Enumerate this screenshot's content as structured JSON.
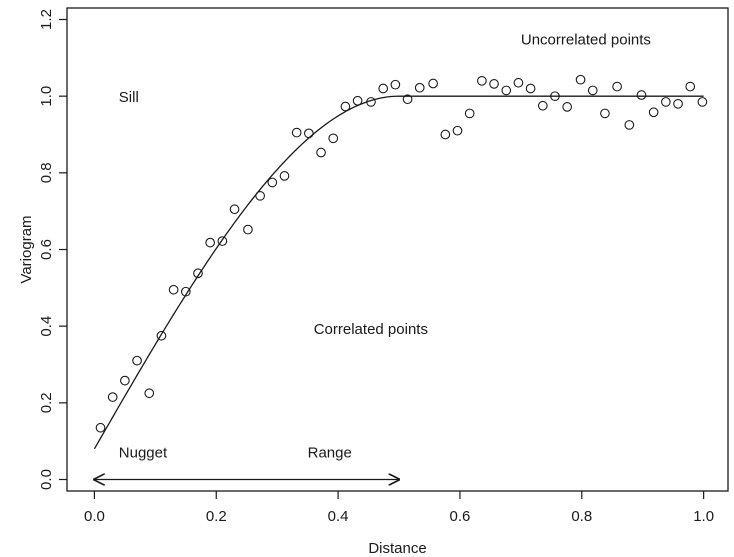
{
  "chart_data": {
    "type": "scatter",
    "title": "",
    "xlabel": "Distance",
    "ylabel": "Variogram",
    "xlim": [
      -0.045,
      1.04
    ],
    "ylim": [
      -0.03,
      1.23
    ],
    "xticks": [
      0.0,
      0.2,
      0.4,
      0.6,
      0.8,
      1.0
    ],
    "xtick_labels": [
      "0.0",
      "0.2",
      "0.4",
      "0.6",
      "0.8",
      "1.0"
    ],
    "yticks": [
      0.0,
      0.2,
      0.4,
      0.6,
      0.8,
      1.0,
      1.2
    ],
    "ytick_labels": [
      "0.0",
      "0.2",
      "0.4",
      "0.6",
      "0.8",
      "1.0",
      "1.2"
    ],
    "grid": false,
    "legend": false,
    "colors": {
      "ink": "#1a1a1a",
      "background": "#ffffff"
    },
    "series": [
      {
        "kind": "points",
        "marker": "open-circle",
        "x": [
          0.01,
          0.03,
          0.05,
          0.07,
          0.09,
          0.11,
          0.13,
          0.15,
          0.17,
          0.19,
          0.21,
          0.23,
          0.252,
          0.272,
          0.292,
          0.312,
          0.332,
          0.352,
          0.372,
          0.392,
          0.412,
          0.432,
          0.454,
          0.474,
          0.494,
          0.514,
          0.534,
          0.556,
          0.576,
          0.596,
          0.616,
          0.636,
          0.656,
          0.676,
          0.696,
          0.716,
          0.736,
          0.756,
          0.776,
          0.798,
          0.818,
          0.838,
          0.858,
          0.878,
          0.898,
          0.918,
          0.938,
          0.958,
          0.978,
          0.998
        ],
        "y": [
          0.135,
          0.215,
          0.258,
          0.31,
          0.225,
          0.375,
          0.495,
          0.49,
          0.538,
          0.618,
          0.622,
          0.705,
          0.652,
          0.74,
          0.775,
          0.792,
          0.905,
          0.903,
          0.853,
          0.89,
          0.973,
          0.988,
          0.985,
          1.02,
          1.03,
          0.992,
          1.022,
          1.033,
          0.9,
          0.91,
          0.955,
          1.04,
          1.032,
          1.015,
          1.035,
          1.02,
          0.975,
          1.0,
          0.972,
          1.043,
          1.015,
          0.955,
          1.025,
          0.925,
          1.003,
          0.958,
          0.985,
          0.98,
          1.025,
          0.985
        ]
      },
      {
        "kind": "model-curve",
        "model": "spherical",
        "nugget": 0.08,
        "sill": 1.0,
        "range": 0.5,
        "x_start": 0.0,
        "x_end": 1.0
      }
    ],
    "range_arrow": {
      "from": 0.0,
      "to": 0.5,
      "y": 0.0
    },
    "annotations": [
      {
        "key": "sill",
        "text": "Sill",
        "x": 0.04,
        "y": 0.985
      },
      {
        "key": "uncorrelated",
        "text": "Uncorrelated points",
        "x": 0.7,
        "y": 1.135
      },
      {
        "key": "correlated",
        "text": "Correlated points",
        "x": 0.36,
        "y": 0.38
      },
      {
        "key": "nugget",
        "text": "Nugget",
        "x": 0.04,
        "y": 0.058
      },
      {
        "key": "range",
        "text": "Range",
        "x": 0.35,
        "y": 0.058
      }
    ]
  }
}
